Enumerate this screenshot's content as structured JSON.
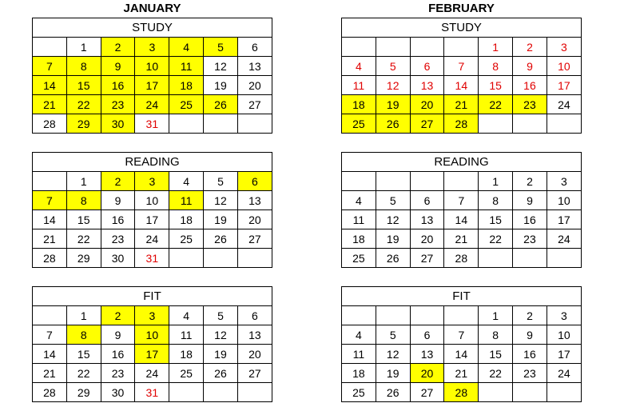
{
  "colors": {
    "highlight": "#ffff00",
    "red_text": "#e00000"
  },
  "months": [
    {
      "title": "JANUARY",
      "leading_blanks": 1,
      "days": 31,
      "red_days": [
        31
      ],
      "calendars": [
        {
          "label": "STUDY",
          "highlighted": [
            2,
            3,
            4,
            5,
            7,
            8,
            9,
            10,
            11,
            14,
            15,
            16,
            17,
            18,
            21,
            22,
            23,
            24,
            25,
            26,
            29,
            30
          ]
        },
        {
          "label": "READING",
          "highlighted": [
            2,
            3,
            6,
            7,
            8,
            11
          ]
        },
        {
          "label": "FIT",
          "highlighted": [
            2,
            3,
            8,
            10,
            17
          ]
        }
      ]
    },
    {
      "title": "FEBRUARY",
      "leading_blanks": 4,
      "days": 28,
      "red_days": [],
      "calendars": [
        {
          "label": "STUDY",
          "highlighted": [
            18,
            19,
            20,
            21,
            22,
            23,
            25,
            26,
            27,
            28
          ],
          "red_days": [
            1,
            2,
            3,
            4,
            5,
            6,
            7,
            8,
            9,
            10,
            11,
            12,
            13,
            14,
            15,
            16,
            17
          ]
        },
        {
          "label": "READING",
          "highlighted": []
        },
        {
          "label": "FIT",
          "highlighted": [
            20,
            28
          ]
        }
      ]
    }
  ]
}
